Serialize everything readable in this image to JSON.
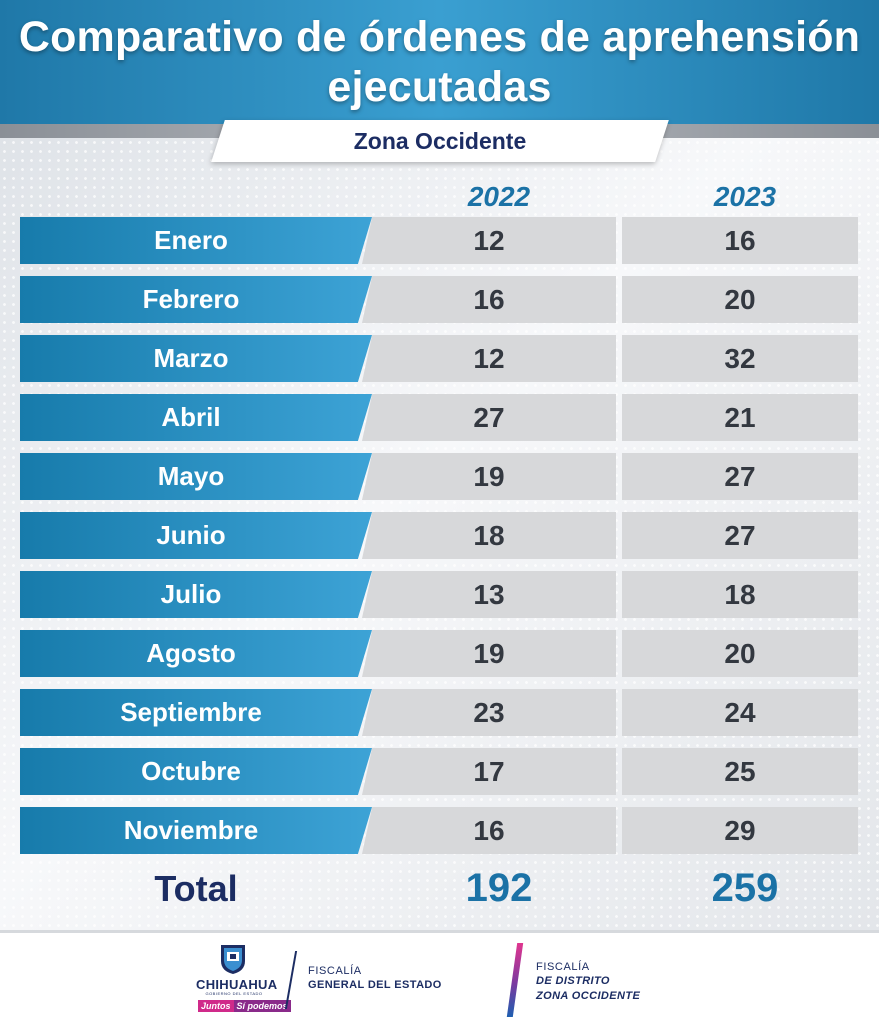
{
  "header": {
    "title": "Comparativo de órdenes de aprehensión ejecutadas",
    "subtitle": "Zona Occidente"
  },
  "chart_data": {
    "type": "table",
    "title": "Comparativo de órdenes de aprehensión ejecutadas",
    "subtitle": "Zona Occidente",
    "columns": [
      "2022",
      "2023"
    ],
    "rows": [
      {
        "month": "Enero",
        "values": [
          12,
          16
        ]
      },
      {
        "month": "Febrero",
        "values": [
          16,
          20
        ]
      },
      {
        "month": "Marzo",
        "values": [
          12,
          32
        ]
      },
      {
        "month": "Abril",
        "values": [
          27,
          21
        ]
      },
      {
        "month": "Mayo",
        "values": [
          19,
          27
        ]
      },
      {
        "month": "Junio",
        "values": [
          18,
          27
        ]
      },
      {
        "month": "Julio",
        "values": [
          13,
          18
        ]
      },
      {
        "month": "Agosto",
        "values": [
          19,
          20
        ]
      },
      {
        "month": "Septiembre",
        "values": [
          23,
          24
        ]
      },
      {
        "month": "Octubre",
        "values": [
          17,
          25
        ]
      },
      {
        "month": "Noviembre",
        "values": [
          16,
          29
        ]
      }
    ],
    "total": {
      "label": "Total",
      "values": [
        192,
        259
      ]
    }
  },
  "footer": {
    "logo_name": "CHIHUAHUA",
    "logo_sub": "GOBIERNO DEL ESTADO",
    "slogan_a": "Juntos",
    "slogan_b": "Sí podemos",
    "fge_line1": "FISCALÍA",
    "fge_line2": "GENERAL DEL ESTADO",
    "fdzo_line1": "FISCALÍA",
    "fdzo_line2": "DE DISTRITO",
    "fdzo_line3": "ZONA OCCIDENTE"
  },
  "colors": {
    "header_blue": "#1f78a8",
    "month_blue": "#3da3d6",
    "navy": "#1c2d63",
    "year_blue": "#1b72a6",
    "cell_gray": "#d7d8da"
  },
  "icons": {
    "state_seal": "chihuahua-seal-icon"
  }
}
